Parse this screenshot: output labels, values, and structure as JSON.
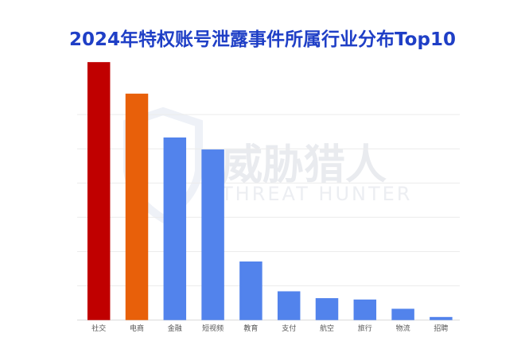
{
  "chart_data": {
    "type": "bar",
    "title": "2024年特权账号泄露事件所属行业分布Top10",
    "xlabel": "",
    "ylabel": "",
    "categories": [
      "社交",
      "电商",
      "金融",
      "短视频",
      "教育",
      "支付",
      "航空",
      "旅行",
      "物流",
      "招聘"
    ],
    "values": [
      7.53,
      6.61,
      5.33,
      4.98,
      1.71,
      0.84,
      0.64,
      0.6,
      0.33,
      0.09
    ],
    "colors": [
      "#c00000",
      "#e8600a",
      "#5283ec",
      "#5283ec",
      "#5283ec",
      "#5283ec",
      "#5283ec",
      "#5283ec",
      "#5283ec",
      "#5283ec"
    ],
    "ylim": [
      0,
      7.6
    ],
    "yticks_shown": false,
    "grid": true,
    "legend": "none"
  },
  "watermark": {
    "cn": "威胁猎人",
    "en": "THREAT HUNTER"
  },
  "title_color": "#1f3fc6"
}
